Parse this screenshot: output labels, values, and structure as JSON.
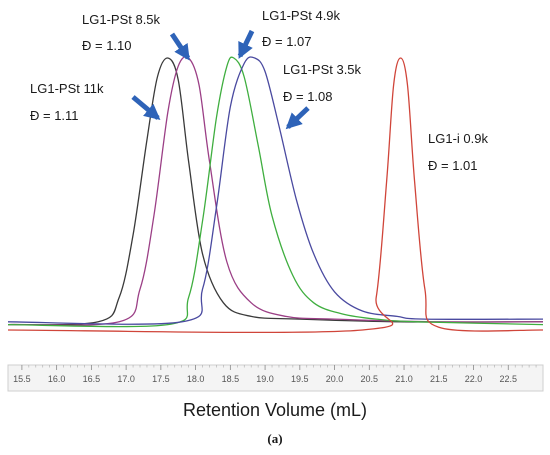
{
  "chart_data": {
    "type": "line",
    "xlabel": "Retention Volume (mL)",
    "caption": "(a)",
    "xlim": [
      15.3,
      23.0
    ],
    "ylim": [
      0,
      1
    ],
    "xticks": [
      "15.5",
      "16.0",
      "16.5",
      "17.0",
      "17.5",
      "18.0",
      "18.5",
      "19.0",
      "19.5",
      "20.0",
      "20.5",
      "21.0",
      "21.5",
      "22.0",
      "22.5"
    ],
    "grid": false,
    "legend": "none",
    "series": [
      {
        "name": "LG1-PSt 11k",
        "color": "#3a3a3a",
        "x": [
          15.3,
          16.6,
          16.9,
          17.1,
          17.3,
          17.45,
          17.6,
          17.75,
          17.9,
          18.1,
          18.4,
          18.8,
          19.5,
          21.0,
          23.0
        ],
        "y": [
          0.02,
          0.03,
          0.12,
          0.35,
          0.7,
          0.93,
          1.0,
          0.92,
          0.62,
          0.28,
          0.1,
          0.05,
          0.04,
          0.03,
          0.03
        ]
      },
      {
        "name": "LG1-PSt 8.5k",
        "color": "#9b3f86",
        "x": [
          15.3,
          16.9,
          17.2,
          17.4,
          17.6,
          17.75,
          17.9,
          18.05,
          18.2,
          18.45,
          18.8,
          19.3,
          20.0,
          21.5,
          23.0
        ],
        "y": [
          0.02,
          0.03,
          0.15,
          0.42,
          0.8,
          0.97,
          1.0,
          0.9,
          0.62,
          0.25,
          0.1,
          0.05,
          0.04,
          0.03,
          0.03
        ]
      },
      {
        "name": "LG1-PSt 4.9k",
        "color": "#3fae3f",
        "x": [
          15.3,
          17.6,
          17.9,
          18.1,
          18.3,
          18.45,
          18.55,
          18.7,
          18.9,
          19.1,
          19.4,
          19.7,
          20.1,
          20.6,
          21.2,
          23.0
        ],
        "y": [
          0.02,
          0.02,
          0.12,
          0.4,
          0.78,
          0.97,
          1.0,
          0.93,
          0.68,
          0.42,
          0.2,
          0.1,
          0.06,
          0.04,
          0.03,
          0.02
        ]
      },
      {
        "name": "LG1-PSt 3.5k",
        "color": "#4a4aa0",
        "x": [
          15.3,
          17.8,
          18.1,
          18.3,
          18.5,
          18.7,
          18.85,
          19.0,
          19.2,
          19.45,
          19.7,
          20.0,
          20.4,
          20.9,
          21.3,
          23.0
        ],
        "y": [
          0.03,
          0.03,
          0.15,
          0.45,
          0.82,
          0.98,
          1.0,
          0.95,
          0.75,
          0.48,
          0.28,
          0.14,
          0.07,
          0.05,
          0.04,
          0.04
        ]
      },
      {
        "name": "LG1-i 0.9k",
        "color": "#d0453a",
        "x": [
          15.3,
          20.4,
          20.6,
          20.75,
          20.85,
          20.95,
          21.05,
          21.15,
          21.3,
          21.5,
          23.0
        ],
        "y": [
          0.0,
          0.0,
          0.12,
          0.55,
          0.9,
          1.0,
          0.9,
          0.55,
          0.15,
          0.01,
          0.0
        ]
      }
    ],
    "annotations": [
      {
        "line1": "LG1-PSt 8.5k",
        "line2": "Đ = 1.10"
      },
      {
        "line1": "LG1-PSt 4.9k",
        "line2": "Đ = 1.07"
      },
      {
        "line1": "LG1-PSt 3.5k",
        "line2": "Đ = 1.08"
      },
      {
        "line1": "LG1-PSt 11k",
        "line2": "Đ = 1.11"
      },
      {
        "line1": "LG1-i 0.9k",
        "line2": "Đ = 1.01"
      }
    ],
    "arrow_color": "#2e63b8"
  }
}
